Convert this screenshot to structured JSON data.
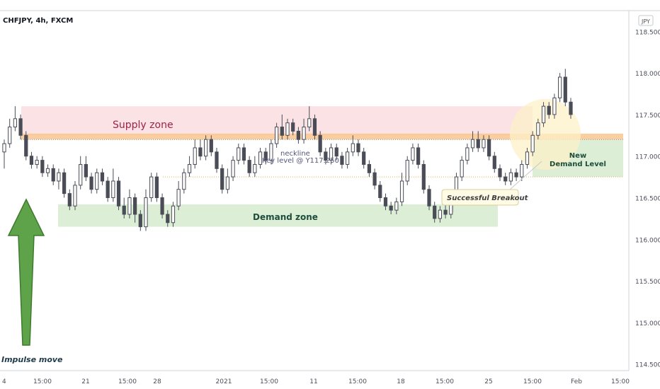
{
  "header": {
    "symbol_title": "CHFJPY, 4h, FXCM",
    "currency_badge": "JPY"
  },
  "annotations": {
    "supply_zone": "Supply zone",
    "demand_zone": "Demand zone",
    "neckline": "neckline",
    "key_level": "Key level @ Y117.250",
    "successful_breakout": "Successful Breakout",
    "new_demand_line1": "New",
    "new_demand_line2": "Demand Level",
    "impulse_move": "Impulse move"
  },
  "colors": {
    "bull_candle": "#ffffff",
    "bear_candle": "#4a4d57",
    "supply_zone": "#fbe3e5",
    "demand_zone": "#dcefd6",
    "key_level_band": "#f9c58e",
    "new_demand_zone": "#dcefd6",
    "impulse_arrow": "#5ea34a",
    "supply_text": "#a0224a",
    "demand_text": "#1e4d3b"
  },
  "chart_data": {
    "type": "candlestick",
    "y_axis": {
      "ticks": [
        114.5,
        115.0,
        115.5,
        116.0,
        116.5,
        117.0,
        117.5,
        118.0,
        118.5
      ],
      "tick_labels": [
        "114.500",
        "115.000",
        "115.500",
        "116.000",
        "116.500",
        "117.000",
        "117.500",
        "118.000",
        "118.500"
      ],
      "range": [
        114.42,
        118.75
      ]
    },
    "x_axis": {
      "tick_labels": [
        "4",
        "15:00",
        "21",
        "15:00",
        "28",
        "2021",
        "15:00",
        "11",
        "15:00",
        "18",
        "15:00",
        "25",
        "15:00",
        "Feb",
        "15:00"
      ],
      "range_bars": [
        0,
        140
      ]
    },
    "zones": {
      "supply": [
        117.25,
        117.6
      ],
      "key_level": [
        117.2,
        117.27
      ],
      "demand": [
        116.15,
        116.42
      ],
      "new_demand": [
        116.75,
        117.2
      ]
    },
    "key_level_value": 117.25,
    "candles": [
      [
        117.05,
        117.15,
        116.85,
        117.2
      ],
      [
        117.15,
        117.35,
        117.1,
        117.45
      ],
      [
        117.35,
        117.45,
        117.3,
        117.6
      ],
      [
        117.45,
        117.25,
        117.2,
        117.5
      ],
      [
        117.25,
        117.0,
        116.95,
        117.3
      ],
      [
        117.0,
        116.9,
        116.85,
        117.05
      ],
      [
        116.9,
        116.95,
        116.85,
        117.0
      ],
      [
        116.95,
        116.8,
        116.75,
        117.0
      ],
      [
        116.8,
        116.85,
        116.75,
        116.9
      ],
      [
        116.85,
        116.7,
        116.65,
        116.9
      ],
      [
        116.7,
        116.8,
        116.6,
        116.85
      ],
      [
        116.8,
        116.55,
        116.5,
        116.85
      ],
      [
        116.55,
        116.4,
        116.35,
        116.6
      ],
      [
        116.4,
        116.65,
        116.35,
        116.7
      ],
      [
        116.65,
        116.9,
        116.6,
        117.0
      ],
      [
        116.9,
        116.75,
        116.7,
        117.0
      ],
      [
        116.75,
        116.6,
        116.55,
        116.8
      ],
      [
        116.6,
        116.8,
        116.55,
        116.85
      ],
      [
        116.8,
        116.7,
        116.65,
        116.85
      ],
      [
        116.7,
        116.5,
        116.45,
        116.75
      ],
      [
        116.5,
        116.7,
        116.45,
        116.85
      ],
      [
        116.7,
        116.4,
        116.35,
        116.75
      ],
      [
        116.4,
        116.3,
        116.25,
        116.5
      ],
      [
        116.3,
        116.5,
        116.25,
        116.6
      ],
      [
        116.5,
        116.3,
        116.2,
        116.55
      ],
      [
        116.3,
        116.15,
        116.1,
        116.35
      ],
      [
        116.15,
        116.5,
        116.1,
        116.6
      ],
      [
        116.5,
        116.75,
        116.45,
        116.8
      ],
      [
        116.75,
        116.5,
        116.45,
        116.8
      ],
      [
        116.5,
        116.3,
        116.25,
        116.55
      ],
      [
        116.3,
        116.2,
        116.15,
        116.35
      ],
      [
        116.2,
        116.4,
        116.15,
        116.45
      ],
      [
        116.4,
        116.6,
        116.35,
        116.7
      ],
      [
        116.6,
        116.8,
        116.55,
        116.85
      ],
      [
        116.8,
        116.9,
        116.75,
        117.0
      ],
      [
        116.9,
        117.1,
        116.85,
        117.2
      ],
      [
        117.1,
        117.0,
        116.95,
        117.2
      ],
      [
        117.0,
        117.2,
        116.95,
        117.25
      ],
      [
        117.2,
        117.05,
        117.0,
        117.25
      ],
      [
        117.05,
        116.85,
        116.8,
        117.1
      ],
      [
        116.85,
        116.6,
        116.55,
        116.9
      ],
      [
        116.6,
        116.75,
        116.55,
        116.85
      ],
      [
        116.75,
        116.95,
        116.7,
        117.0
      ],
      [
        116.95,
        117.1,
        116.9,
        117.15
      ],
      [
        117.1,
        116.95,
        116.9,
        117.15
      ],
      [
        116.95,
        116.8,
        116.75,
        117.0
      ],
      [
        116.8,
        116.9,
        116.75,
        117.0
      ],
      [
        116.9,
        117.05,
        116.85,
        117.1
      ],
      [
        117.05,
        116.95,
        116.9,
        117.1
      ],
      [
        116.95,
        117.15,
        116.9,
        117.2
      ],
      [
        117.15,
        117.35,
        117.1,
        117.4
      ],
      [
        117.35,
        117.25,
        117.2,
        117.5
      ],
      [
        117.25,
        117.4,
        117.2,
        117.45
      ],
      [
        117.4,
        117.3,
        117.25,
        117.45
      ],
      [
        117.3,
        117.2,
        117.15,
        117.35
      ],
      [
        117.2,
        117.35,
        117.15,
        117.45
      ],
      [
        117.35,
        117.45,
        117.3,
        117.6
      ],
      [
        117.45,
        117.25,
        117.2,
        117.5
      ],
      [
        117.25,
        117.05,
        117.0,
        117.3
      ],
      [
        117.05,
        116.95,
        116.9,
        117.1
      ],
      [
        116.95,
        117.1,
        116.9,
        117.15
      ],
      [
        117.1,
        117.0,
        116.95,
        117.15
      ],
      [
        117.0,
        116.9,
        116.85,
        117.05
      ],
      [
        116.9,
        117.05,
        116.85,
        117.1
      ],
      [
        117.05,
        117.15,
        117.0,
        117.25
      ],
      [
        117.15,
        117.05,
        117.0,
        117.2
      ],
      [
        117.05,
        116.9,
        116.85,
        117.1
      ],
      [
        116.9,
        116.8,
        116.75,
        116.95
      ],
      [
        116.8,
        116.65,
        116.6,
        116.85
      ],
      [
        116.65,
        116.5,
        116.45,
        116.7
      ],
      [
        116.5,
        116.4,
        116.35,
        116.55
      ],
      [
        116.4,
        116.35,
        116.3,
        116.45
      ],
      [
        116.35,
        116.45,
        116.3,
        116.5
      ],
      [
        116.45,
        116.7,
        116.4,
        116.8
      ],
      [
        116.7,
        116.95,
        116.65,
        117.0
      ],
      [
        116.95,
        117.1,
        116.9,
        117.15
      ],
      [
        117.1,
        116.9,
        116.85,
        117.15
      ],
      [
        116.9,
        116.6,
        116.55,
        116.95
      ],
      [
        116.6,
        116.4,
        116.35,
        116.65
      ],
      [
        116.4,
        116.25,
        116.2,
        116.45
      ],
      [
        116.25,
        116.35,
        116.2,
        116.4
      ],
      [
        116.35,
        116.3,
        116.25,
        116.45
      ],
      [
        116.3,
        116.55,
        116.25,
        116.6
      ],
      [
        116.55,
        116.75,
        116.5,
        116.8
      ],
      [
        116.75,
        116.95,
        116.7,
        117.0
      ],
      [
        116.95,
        117.1,
        116.9,
        117.15
      ],
      [
        117.1,
        117.2,
        117.05,
        117.3
      ],
      [
        117.2,
        117.1,
        117.05,
        117.3
      ],
      [
        117.1,
        117.2,
        117.05,
        117.25
      ],
      [
        117.2,
        117.0,
        116.95,
        117.25
      ],
      [
        117.0,
        116.85,
        116.8,
        117.05
      ],
      [
        116.85,
        116.75,
        116.7,
        116.9
      ],
      [
        116.75,
        116.7,
        116.65,
        116.8
      ],
      [
        116.7,
        116.8,
        116.65,
        116.85
      ],
      [
        116.8,
        116.75,
        116.7,
        116.85
      ],
      [
        116.75,
        116.9,
        116.7,
        116.95
      ],
      [
        116.9,
        117.05,
        116.85,
        117.1
      ],
      [
        117.05,
        117.25,
        117.0,
        117.3
      ],
      [
        117.25,
        117.4,
        117.2,
        117.45
      ],
      [
        117.4,
        117.6,
        117.35,
        117.65
      ],
      [
        117.6,
        117.5,
        117.45,
        117.65
      ],
      [
        117.5,
        117.7,
        117.45,
        117.75
      ],
      [
        117.7,
        117.95,
        117.65,
        118.0
      ],
      [
        117.95,
        117.65,
        117.6,
        118.05
      ],
      [
        117.65,
        117.5,
        117.45,
        117.7
      ]
    ]
  }
}
